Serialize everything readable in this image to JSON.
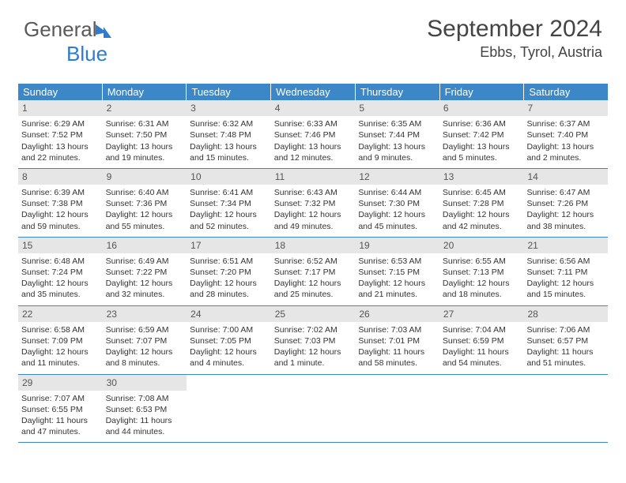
{
  "logo": {
    "text1": "General",
    "text2": "Blue"
  },
  "header": {
    "month": "September 2024",
    "location": "Ebbs, Tyrol, Austria"
  },
  "colors": {
    "header_bg": "#3b87c8",
    "header_text": "#ffffff",
    "daynum_bg": "#e6e6e6",
    "border": "#3b87c8",
    "body_text": "#333333"
  },
  "dayNames": [
    "Sunday",
    "Monday",
    "Tuesday",
    "Wednesday",
    "Thursday",
    "Friday",
    "Saturday"
  ],
  "weeks": [
    [
      {
        "num": "1",
        "sunrise": "Sunrise: 6:29 AM",
        "sunset": "Sunset: 7:52 PM",
        "daylight": "Daylight: 13 hours and 22 minutes."
      },
      {
        "num": "2",
        "sunrise": "Sunrise: 6:31 AM",
        "sunset": "Sunset: 7:50 PM",
        "daylight": "Daylight: 13 hours and 19 minutes."
      },
      {
        "num": "3",
        "sunrise": "Sunrise: 6:32 AM",
        "sunset": "Sunset: 7:48 PM",
        "daylight": "Daylight: 13 hours and 15 minutes."
      },
      {
        "num": "4",
        "sunrise": "Sunrise: 6:33 AM",
        "sunset": "Sunset: 7:46 PM",
        "daylight": "Daylight: 13 hours and 12 minutes."
      },
      {
        "num": "5",
        "sunrise": "Sunrise: 6:35 AM",
        "sunset": "Sunset: 7:44 PM",
        "daylight": "Daylight: 13 hours and 9 minutes."
      },
      {
        "num": "6",
        "sunrise": "Sunrise: 6:36 AM",
        "sunset": "Sunset: 7:42 PM",
        "daylight": "Daylight: 13 hours and 5 minutes."
      },
      {
        "num": "7",
        "sunrise": "Sunrise: 6:37 AM",
        "sunset": "Sunset: 7:40 PM",
        "daylight": "Daylight: 13 hours and 2 minutes."
      }
    ],
    [
      {
        "num": "8",
        "sunrise": "Sunrise: 6:39 AM",
        "sunset": "Sunset: 7:38 PM",
        "daylight": "Daylight: 12 hours and 59 minutes."
      },
      {
        "num": "9",
        "sunrise": "Sunrise: 6:40 AM",
        "sunset": "Sunset: 7:36 PM",
        "daylight": "Daylight: 12 hours and 55 minutes."
      },
      {
        "num": "10",
        "sunrise": "Sunrise: 6:41 AM",
        "sunset": "Sunset: 7:34 PM",
        "daylight": "Daylight: 12 hours and 52 minutes."
      },
      {
        "num": "11",
        "sunrise": "Sunrise: 6:43 AM",
        "sunset": "Sunset: 7:32 PM",
        "daylight": "Daylight: 12 hours and 49 minutes."
      },
      {
        "num": "12",
        "sunrise": "Sunrise: 6:44 AM",
        "sunset": "Sunset: 7:30 PM",
        "daylight": "Daylight: 12 hours and 45 minutes."
      },
      {
        "num": "13",
        "sunrise": "Sunrise: 6:45 AM",
        "sunset": "Sunset: 7:28 PM",
        "daylight": "Daylight: 12 hours and 42 minutes."
      },
      {
        "num": "14",
        "sunrise": "Sunrise: 6:47 AM",
        "sunset": "Sunset: 7:26 PM",
        "daylight": "Daylight: 12 hours and 38 minutes."
      }
    ],
    [
      {
        "num": "15",
        "sunrise": "Sunrise: 6:48 AM",
        "sunset": "Sunset: 7:24 PM",
        "daylight": "Daylight: 12 hours and 35 minutes."
      },
      {
        "num": "16",
        "sunrise": "Sunrise: 6:49 AM",
        "sunset": "Sunset: 7:22 PM",
        "daylight": "Daylight: 12 hours and 32 minutes."
      },
      {
        "num": "17",
        "sunrise": "Sunrise: 6:51 AM",
        "sunset": "Sunset: 7:20 PM",
        "daylight": "Daylight: 12 hours and 28 minutes."
      },
      {
        "num": "18",
        "sunrise": "Sunrise: 6:52 AM",
        "sunset": "Sunset: 7:17 PM",
        "daylight": "Daylight: 12 hours and 25 minutes."
      },
      {
        "num": "19",
        "sunrise": "Sunrise: 6:53 AM",
        "sunset": "Sunset: 7:15 PM",
        "daylight": "Daylight: 12 hours and 21 minutes."
      },
      {
        "num": "20",
        "sunrise": "Sunrise: 6:55 AM",
        "sunset": "Sunset: 7:13 PM",
        "daylight": "Daylight: 12 hours and 18 minutes."
      },
      {
        "num": "21",
        "sunrise": "Sunrise: 6:56 AM",
        "sunset": "Sunset: 7:11 PM",
        "daylight": "Daylight: 12 hours and 15 minutes."
      }
    ],
    [
      {
        "num": "22",
        "sunrise": "Sunrise: 6:58 AM",
        "sunset": "Sunset: 7:09 PM",
        "daylight": "Daylight: 12 hours and 11 minutes."
      },
      {
        "num": "23",
        "sunrise": "Sunrise: 6:59 AM",
        "sunset": "Sunset: 7:07 PM",
        "daylight": "Daylight: 12 hours and 8 minutes."
      },
      {
        "num": "24",
        "sunrise": "Sunrise: 7:00 AM",
        "sunset": "Sunset: 7:05 PM",
        "daylight": "Daylight: 12 hours and 4 minutes."
      },
      {
        "num": "25",
        "sunrise": "Sunrise: 7:02 AM",
        "sunset": "Sunset: 7:03 PM",
        "daylight": "Daylight: 12 hours and 1 minute."
      },
      {
        "num": "26",
        "sunrise": "Sunrise: 7:03 AM",
        "sunset": "Sunset: 7:01 PM",
        "daylight": "Daylight: 11 hours and 58 minutes."
      },
      {
        "num": "27",
        "sunrise": "Sunrise: 7:04 AM",
        "sunset": "Sunset: 6:59 PM",
        "daylight": "Daylight: 11 hours and 54 minutes."
      },
      {
        "num": "28",
        "sunrise": "Sunrise: 7:06 AM",
        "sunset": "Sunset: 6:57 PM",
        "daylight": "Daylight: 11 hours and 51 minutes."
      }
    ],
    [
      {
        "num": "29",
        "sunrise": "Sunrise: 7:07 AM",
        "sunset": "Sunset: 6:55 PM",
        "daylight": "Daylight: 11 hours and 47 minutes."
      },
      {
        "num": "30",
        "sunrise": "Sunrise: 7:08 AM",
        "sunset": "Sunset: 6:53 PM",
        "daylight": "Daylight: 11 hours and 44 minutes."
      },
      null,
      null,
      null,
      null,
      null
    ]
  ]
}
